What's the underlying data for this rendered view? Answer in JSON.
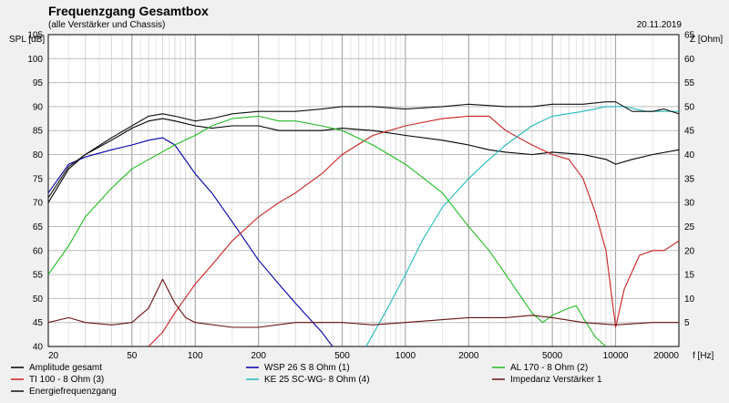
{
  "title": "Frequenzgang Gesamtbox",
  "subtitle": "(alle Verstärker und Chassis)",
  "date": "20.11.2019",
  "chart_data": {
    "type": "line",
    "xlabel": "f [Hz]",
    "ylabel": "SPL [dB]",
    "y2label": "Z [Ohm]",
    "xscale": "log",
    "xlim": [
      20,
      20000
    ],
    "ylim": [
      40,
      105
    ],
    "y2lim": [
      0,
      65
    ],
    "grid": true,
    "legend_position": "bottom",
    "xticks": [
      20,
      50,
      100,
      200,
      500,
      1000,
      2000,
      5000,
      10000,
      20000
    ],
    "xtick_labels": [
      "20",
      "50",
      "100",
      "200",
      "500",
      "1000",
      "2000",
      "5000",
      "10000",
      "20000"
    ],
    "yticks": [
      40,
      45,
      50,
      55,
      60,
      65,
      70,
      75,
      80,
      85,
      90,
      95,
      100,
      105
    ],
    "ytick_labels": [
      "40",
      "45",
      "50",
      "55",
      "60",
      "65",
      "70",
      "75",
      "80",
      "85",
      "90",
      "95",
      "100",
      "105"
    ],
    "y2ticks": [
      5,
      10,
      15,
      20,
      25,
      30,
      35,
      40,
      45,
      50,
      55,
      60,
      65
    ],
    "y2tick_labels": [
      "5",
      "10",
      "15",
      "20",
      "25",
      "30",
      "35",
      "40",
      "45",
      "50",
      "55",
      "60",
      "65"
    ],
    "series": [
      {
        "name": "Amplitude gesamt",
        "color": "#000000",
        "axis": "left",
        "points": [
          [
            20,
            70
          ],
          [
            25,
            77
          ],
          [
            30,
            80
          ],
          [
            40,
            83
          ],
          [
            50,
            85.5
          ],
          [
            60,
            87
          ],
          [
            70,
            87.5
          ],
          [
            80,
            87
          ],
          [
            100,
            86
          ],
          [
            120,
            85.5
          ],
          [
            150,
            86
          ],
          [
            200,
            86
          ],
          [
            250,
            85
          ],
          [
            300,
            85
          ],
          [
            400,
            85
          ],
          [
            500,
            85.5
          ],
          [
            700,
            85
          ],
          [
            1000,
            84
          ],
          [
            1500,
            83
          ],
          [
            2000,
            82
          ],
          [
            2500,
            81
          ],
          [
            3000,
            80.5
          ],
          [
            4000,
            80
          ],
          [
            5000,
            80.5
          ],
          [
            7000,
            80
          ],
          [
            9000,
            79
          ],
          [
            10000,
            78
          ],
          [
            12000,
            79
          ],
          [
            15000,
            80
          ],
          [
            20000,
            81
          ]
        ]
      },
      {
        "name": "WSP 26 S 8 Ohm (1)",
        "color": "#0000aa",
        "axis": "left",
        "points": [
          [
            20,
            72
          ],
          [
            25,
            78
          ],
          [
            30,
            79.5
          ],
          [
            40,
            81
          ],
          [
            50,
            82
          ],
          [
            60,
            83
          ],
          [
            70,
            83.5
          ],
          [
            80,
            82
          ],
          [
            100,
            76
          ],
          [
            120,
            72
          ],
          [
            150,
            66
          ],
          [
            200,
            58
          ],
          [
            250,
            53
          ],
          [
            300,
            49
          ],
          [
            400,
            43
          ],
          [
            450,
            40
          ]
        ]
      },
      {
        "name": "TI 100 - 8 Ohm (3)",
        "color": "#cc2222",
        "axis": "left",
        "points": [
          [
            60,
            40
          ],
          [
            70,
            43
          ],
          [
            80,
            47
          ],
          [
            100,
            53
          ],
          [
            120,
            57
          ],
          [
            150,
            62
          ],
          [
            200,
            67
          ],
          [
            250,
            70
          ],
          [
            300,
            72
          ],
          [
            400,
            76
          ],
          [
            500,
            80
          ],
          [
            700,
            84
          ],
          [
            1000,
            86
          ],
          [
            1500,
            87.5
          ],
          [
            2000,
            88
          ],
          [
            2500,
            88
          ],
          [
            3000,
            85
          ],
          [
            4000,
            82
          ],
          [
            5000,
            80
          ],
          [
            6000,
            79
          ],
          [
            7000,
            75
          ],
          [
            8000,
            68
          ],
          [
            9000,
            60
          ],
          [
            10000,
            44
          ],
          [
            11000,
            52
          ],
          [
            13000,
            59
          ],
          [
            15000,
            60
          ],
          [
            17000,
            60
          ],
          [
            20000,
            62
          ]
        ]
      },
      {
        "name": "KE 25 SC-WG- 8 Ohm    (4)",
        "color": "#22bbbb",
        "axis": "left",
        "points": [
          [
            650,
            40
          ],
          [
            800,
            47
          ],
          [
            1000,
            55
          ],
          [
            1200,
            62
          ],
          [
            1500,
            69
          ],
          [
            2000,
            75
          ],
          [
            2500,
            79
          ],
          [
            3000,
            82
          ],
          [
            4000,
            86
          ],
          [
            5000,
            88
          ],
          [
            7000,
            89
          ],
          [
            9000,
            90
          ],
          [
            11000,
            90
          ],
          [
            14000,
            89
          ],
          [
            17000,
            89
          ],
          [
            20000,
            89
          ]
        ]
      },
      {
        "name": "AL 170 - 8 Ohm (2)",
        "color": "#22bb22",
        "axis": "left",
        "points": [
          [
            20,
            55
          ],
          [
            25,
            61
          ],
          [
            30,
            67
          ],
          [
            40,
            73
          ],
          [
            50,
            77
          ],
          [
            60,
            79
          ],
          [
            80,
            82
          ],
          [
            100,
            84
          ],
          [
            120,
            86
          ],
          [
            150,
            87.5
          ],
          [
            200,
            88
          ],
          [
            250,
            87
          ],
          [
            300,
            87
          ],
          [
            400,
            86
          ],
          [
            500,
            85
          ],
          [
            700,
            82
          ],
          [
            1000,
            78
          ],
          [
            1500,
            72
          ],
          [
            2000,
            65
          ],
          [
            2500,
            60
          ],
          [
            3000,
            55
          ],
          [
            4000,
            47
          ],
          [
            4500,
            45
          ],
          [
            5000,
            46.5
          ],
          [
            6000,
            48
          ],
          [
            6500,
            48.5
          ],
          [
            7000,
            46
          ],
          [
            8000,
            42
          ],
          [
            9000,
            40
          ]
        ]
      },
      {
        "name": "Impedanz Verstärker 1",
        "color": "#661111",
        "axis": "right",
        "points": [
          [
            20,
            5
          ],
          [
            25,
            6
          ],
          [
            30,
            5
          ],
          [
            40,
            4.5
          ],
          [
            50,
            5
          ],
          [
            60,
            8
          ],
          [
            70,
            14
          ],
          [
            80,
            9
          ],
          [
            90,
            6
          ],
          [
            100,
            5
          ],
          [
            150,
            4
          ],
          [
            200,
            4
          ],
          [
            300,
            5
          ],
          [
            500,
            5
          ],
          [
            700,
            4.5
          ],
          [
            1000,
            5
          ],
          [
            2000,
            6
          ],
          [
            3000,
            6
          ],
          [
            4000,
            6.5
          ],
          [
            5000,
            6
          ],
          [
            7000,
            5
          ],
          [
            10000,
            4.5
          ],
          [
            15000,
            5
          ],
          [
            20000,
            5
          ]
        ]
      },
      {
        "name": "Energiefrequenzgang",
        "color": "#111111",
        "axis": "left",
        "points": [
          [
            20,
            71
          ],
          [
            25,
            77.5
          ],
          [
            30,
            80
          ],
          [
            40,
            83.5
          ],
          [
            50,
            86
          ],
          [
            60,
            88
          ],
          [
            70,
            88.5
          ],
          [
            80,
            88
          ],
          [
            100,
            87
          ],
          [
            120,
            87.5
          ],
          [
            150,
            88.5
          ],
          [
            200,
            89
          ],
          [
            300,
            89
          ],
          [
            400,
            89.5
          ],
          [
            500,
            90
          ],
          [
            700,
            90
          ],
          [
            1000,
            89.5
          ],
          [
            1500,
            90
          ],
          [
            2000,
            90.5
          ],
          [
            3000,
            90
          ],
          [
            4000,
            90
          ],
          [
            5000,
            90.5
          ],
          [
            6000,
            90.5
          ],
          [
            7000,
            90.5
          ],
          [
            9000,
            91
          ],
          [
            10000,
            91
          ],
          [
            12000,
            89
          ],
          [
            15000,
            89
          ],
          [
            17000,
            89.5
          ],
          [
            20000,
            88.5
          ]
        ]
      }
    ],
    "legend_order": [
      0,
      1,
      4,
      2,
      3,
      5,
      6
    ]
  }
}
